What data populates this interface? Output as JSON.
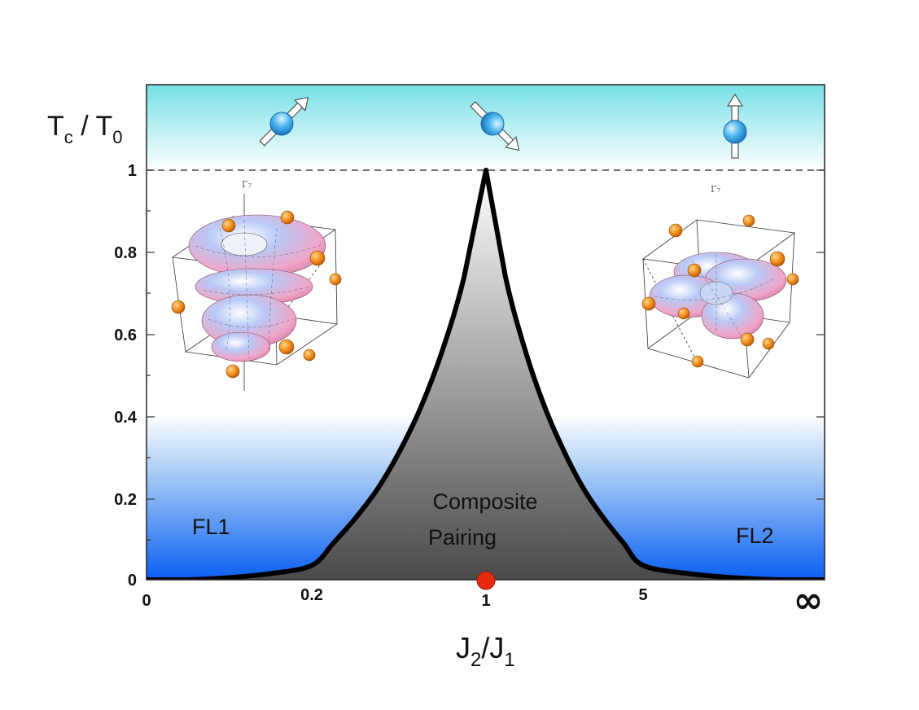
{
  "chart_data": {
    "type": "area",
    "ylabel": {
      "main": "T",
      "sub": "c",
      "mid": " / T",
      "sub2": "0"
    },
    "xlabel": {
      "main": "J",
      "sub": "2",
      "mid": "/J",
      "sub2": "1"
    },
    "x_ticks": [
      "0",
      "0.2",
      "1",
      "5",
      "∞"
    ],
    "y_ticks": [
      "0",
      "0.2",
      "0.4",
      "0.6",
      "0.8",
      "1"
    ],
    "ylim": [
      0,
      1
    ],
    "curve": {
      "peak_at": "1",
      "peak_value": 1,
      "x": [
        0,
        0.05,
        0.1,
        0.15,
        0.2,
        0.3,
        0.4,
        0.5,
        0.6,
        0.7,
        0.8,
        0.9,
        1,
        1.11,
        1.25,
        1.43,
        1.67,
        2,
        2.5,
        3.33,
        5,
        6.67,
        10,
        20,
        "∞"
      ],
      "y": [
        0,
        0,
        0.005,
        0.015,
        0.035,
        0.09,
        0.15,
        0.22,
        0.31,
        0.42,
        0.56,
        0.74,
        1,
        0.74,
        0.56,
        0.42,
        0.31,
        0.22,
        0.15,
        0.09,
        0.035,
        0.015,
        0.005,
        0,
        0
      ]
    },
    "reference_line": {
      "value": 1,
      "style": "dashed"
    },
    "regions": [
      {
        "name": "FL1"
      },
      {
        "name": "Composite",
        "line2": "Pairing"
      },
      {
        "name": "FL2"
      }
    ],
    "insets": [
      {
        "label": "Γ₇"
      },
      {
        "label": "Γ₇"
      }
    ],
    "marker": {
      "at": "1",
      "color": "#e62a12"
    }
  },
  "colors": {
    "top_band": "#7ee2e6",
    "bottom_band": "#0a5ff2",
    "curve": "#000000",
    "fill_dark": "#555555",
    "fill_light": "#ffffff",
    "spin_ball": "#2fa9ee",
    "orbital_pink": "#f0a0c8",
    "orbital_blue": "#7fa8f0",
    "orange_dot": "#f09020"
  },
  "icons": [
    "spin-up-right-icon",
    "spin-down-right-icon",
    "spin-up-icon"
  ]
}
